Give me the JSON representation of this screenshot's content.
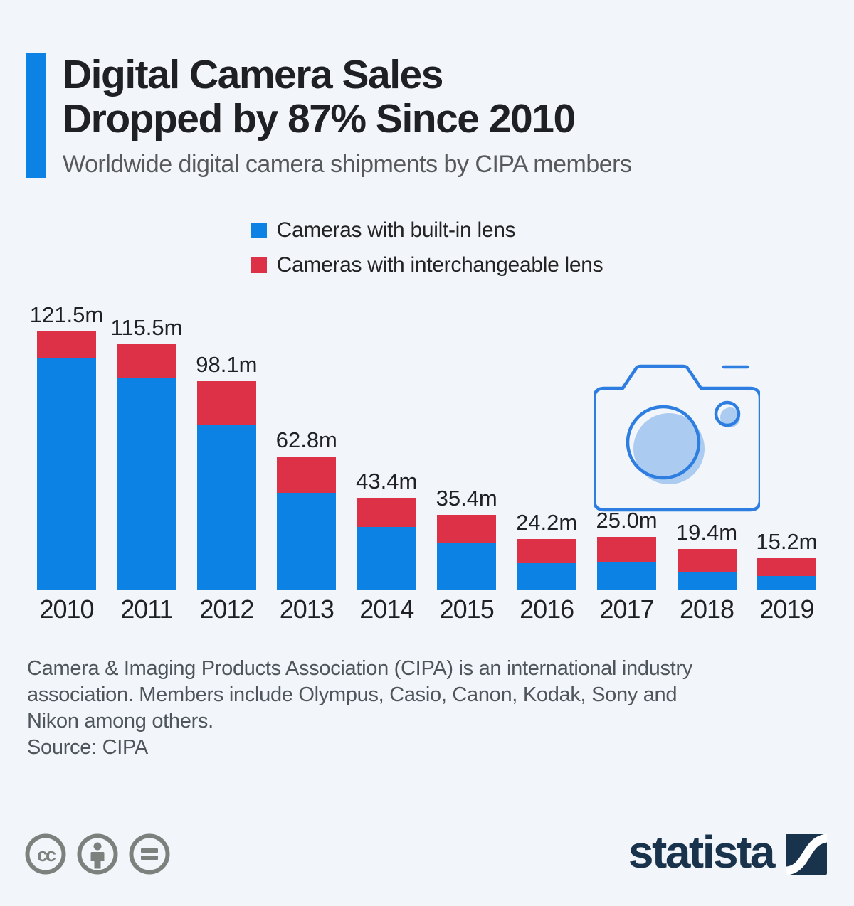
{
  "page": {
    "background": "#f2f6fa"
  },
  "header": {
    "title_line1": "Digital Camera Sales",
    "title_line2": "Dropped by 87% Since 2010",
    "subtitle": "Worldwide digital camera shipments by CIPA members",
    "accent_color": "#0b82e4",
    "title_color": "#1e2023",
    "subtitle_color": "#58595b"
  },
  "legend": {
    "items": [
      {
        "label": "Cameras with built-in lens",
        "color": "#0b82e4"
      },
      {
        "label": "Cameras with interchangeable lens",
        "color": "#dc3146"
      }
    ]
  },
  "chart_data": {
    "type": "bar",
    "stacked": true,
    "unit": "million units",
    "categories": [
      "2010",
      "2011",
      "2012",
      "2013",
      "2014",
      "2015",
      "2016",
      "2017",
      "2018",
      "2019"
    ],
    "series": [
      {
        "name": "Cameras with built-in lens",
        "color": "#0b82e4",
        "values": [
          108.6,
          99.8,
          77.8,
          45.7,
          29.6,
          22.4,
          12.6,
          13.3,
          8.7,
          6.8
        ]
      },
      {
        "name": "Cameras with interchangeable lens",
        "color": "#dc3146",
        "values": [
          12.9,
          15.7,
          20.3,
          17.1,
          13.8,
          13.0,
          11.6,
          11.7,
          10.7,
          8.4
        ]
      }
    ],
    "totals": [
      121.5,
      115.5,
      98.1,
      62.8,
      43.4,
      35.4,
      24.2,
      25.0,
      19.4,
      15.2
    ],
    "total_labels": [
      "121.5m",
      "115.5m",
      "98.1m",
      "62.8m",
      "43.4m",
      "35.4m",
      "24.2m",
      "25.0m",
      "19.4m",
      "15.2m"
    ],
    "ylim": [
      0,
      136
    ],
    "pixels_per_unit": 3,
    "grid": false,
    "legend_position": "top-center",
    "value_label_color": "#1f2124",
    "axis_label_color": "#1f2124"
  },
  "camera_icon": {
    "outline_color": "#2e7ee2",
    "fill_color": "#abccf0"
  },
  "footer": {
    "description_lines": [
      "Camera & Imaging Products Association (CIPA) is an international industry",
      "association. Members include Olympus, Casio, Canon, Kodak, Sony and",
      "Nikon among others."
    ],
    "source": "Source: CIPA",
    "text_color": "#4e565c"
  },
  "branding": {
    "logo_text": "statista",
    "logo_color": "#1a334d",
    "license_icon_color": "#7c817d"
  }
}
